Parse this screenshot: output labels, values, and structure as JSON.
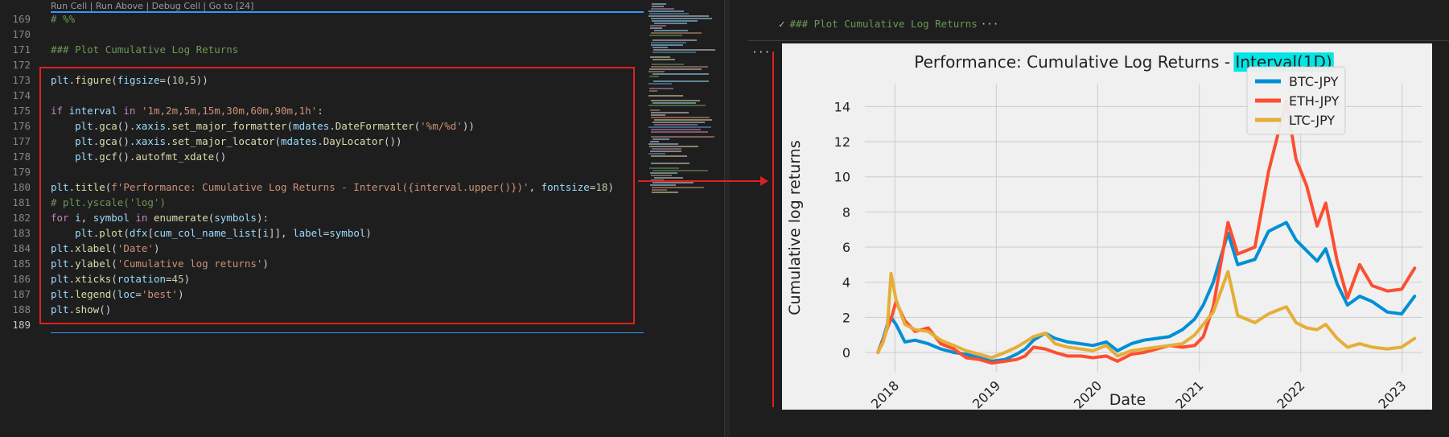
{
  "editor": {
    "codelens": "Run Cell | Run Above | Debug Cell | Go to [24]",
    "line_numbers": [
      "169",
      "170",
      "171",
      "172",
      "173",
      "174",
      "175",
      "176",
      "177",
      "178",
      "179",
      "180",
      "181",
      "182",
      "183",
      "184",
      "185",
      "186",
      "187",
      "188",
      "189"
    ],
    "lines": {
      "l169": "# %%",
      "l171": "### Plot Cumulative Log Returns",
      "l173": "plt.figure(figsize=(10,5))",
      "l175": "if interval in '1m,2m,5m,15m,30m,60m,90m,1h':",
      "l176": "    plt.gca().xaxis.set_major_formatter(mdates.DateFormatter('%m/%d'))",
      "l177": "    plt.gca().xaxis.set_major_locator(mdates.DayLocator())",
      "l178": "    plt.gcf().autofmt_xdate()",
      "l180": "plt.title(f'Performance: Cumulative Log Returns - Interval({interval.upper()})', fontsize=18)",
      "l181": "# plt.yscale('log')",
      "l182": "for i, symbol in enumerate(symbols):",
      "l183": "    plt.plot(dfx[cum_col_name_list[i]], label=symbol)",
      "l184": "plt.xlabel('Date')",
      "l185": "plt.ylabel('Cumulative log returns')",
      "l186": "plt.xticks(rotation=45)",
      "l187": "plt.legend(loc='best')",
      "l188": "plt.show()"
    }
  },
  "output": {
    "cell_header": "### Plot Cumulative Log Returns",
    "header_more": "···",
    "more_actions": "···"
  },
  "colors": {
    "btc": "#008fd5",
    "eth": "#fc4f30",
    "ltc": "#e5ae38",
    "highlight": "#00e5e5",
    "annotation_red": "#e02020"
  },
  "chart_data": {
    "type": "line",
    "title": "Performance: Cumulative Log Returns - ",
    "title_highlight": "Interval(1D)",
    "xlabel": "Date",
    "ylabel": "Cumulative log returns",
    "x_tick_labels": [
      "2018",
      "2019",
      "2020",
      "2021",
      "2022",
      "2023"
    ],
    "y_tick_labels": [
      "0",
      "2",
      "4",
      "6",
      "8",
      "10",
      "12",
      "14"
    ],
    "xlim": [
      "2017-09-15",
      "2023-03-15"
    ],
    "ylim": [
      -1.1,
      15.3
    ],
    "grid": true,
    "legend_position": "upper right",
    "x": [
      "2017-11-01",
      "2017-11-20",
      "2017-12-05",
      "2017-12-18",
      "2018-01-05",
      "2018-02-06",
      "2018-03-15",
      "2018-05-01",
      "2018-06-15",
      "2018-08-01",
      "2018-09-15",
      "2018-11-01",
      "2018-12-15",
      "2019-02-01",
      "2019-03-15",
      "2019-04-15",
      "2019-05-15",
      "2019-06-26",
      "2019-08-01",
      "2019-09-15",
      "2019-11-01",
      "2019-12-15",
      "2020-02-01",
      "2020-03-12",
      "2020-05-01",
      "2020-06-15",
      "2020-08-01",
      "2020-09-15",
      "2020-11-01",
      "2020-12-15",
      "2021-01-15",
      "2021-02-20",
      "2021-04-14",
      "2021-05-19",
      "2021-07-20",
      "2021-09-07",
      "2021-11-10",
      "2021-12-15",
      "2022-01-22",
      "2022-03-01",
      "2022-04-01",
      "2022-05-12",
      "2022-06-18",
      "2022-08-01",
      "2022-09-15",
      "2022-11-09",
      "2022-12-30",
      "2023-02-15"
    ],
    "series": [
      {
        "name": "BTC-JPY",
        "color": "#008fd5",
        "values": [
          0.0,
          0.8,
          1.6,
          2.0,
          1.6,
          0.6,
          0.7,
          0.5,
          0.2,
          0.0,
          -0.1,
          -0.3,
          -0.5,
          -0.4,
          -0.1,
          0.2,
          0.7,
          1.1,
          0.8,
          0.6,
          0.5,
          0.4,
          0.6,
          0.1,
          0.5,
          0.7,
          0.8,
          0.9,
          1.3,
          1.9,
          2.7,
          4.0,
          6.8,
          5.0,
          5.3,
          6.9,
          7.4,
          6.4,
          5.8,
          5.2,
          5.9,
          3.9,
          2.7,
          3.2,
          2.9,
          2.3,
          2.2,
          3.2
        ]
      },
      {
        "name": "ETH-JPY",
        "color": "#fc4f30",
        "values": [
          0.0,
          0.7,
          1.4,
          1.9,
          2.9,
          1.8,
          1.2,
          1.4,
          0.5,
          0.2,
          -0.3,
          -0.4,
          -0.6,
          -0.5,
          -0.4,
          -0.2,
          0.3,
          0.2,
          0.0,
          -0.2,
          -0.2,
          -0.3,
          -0.2,
          -0.5,
          -0.1,
          0.0,
          0.2,
          0.4,
          0.3,
          0.4,
          0.9,
          2.6,
          7.4,
          5.6,
          6.0,
          10.3,
          14.3,
          11.0,
          9.5,
          7.2,
          8.5,
          5.2,
          3.1,
          5.0,
          3.8,
          3.5,
          3.6,
          4.8
        ]
      },
      {
        "name": "LTC-JPY",
        "color": "#e5ae38",
        "values": [
          0.0,
          0.6,
          1.5,
          4.5,
          3.0,
          1.6,
          1.3,
          1.2,
          0.7,
          0.4,
          0.1,
          -0.1,
          -0.3,
          0.0,
          0.3,
          0.6,
          0.9,
          1.1,
          0.5,
          0.3,
          0.2,
          0.1,
          0.4,
          -0.2,
          0.1,
          0.2,
          0.3,
          0.4,
          0.5,
          1.0,
          1.6,
          2.3,
          4.6,
          2.1,
          1.7,
          2.2,
          2.6,
          1.7,
          1.4,
          1.3,
          1.6,
          0.8,
          0.3,
          0.5,
          0.3,
          0.2,
          0.3,
          0.8
        ]
      }
    ]
  }
}
